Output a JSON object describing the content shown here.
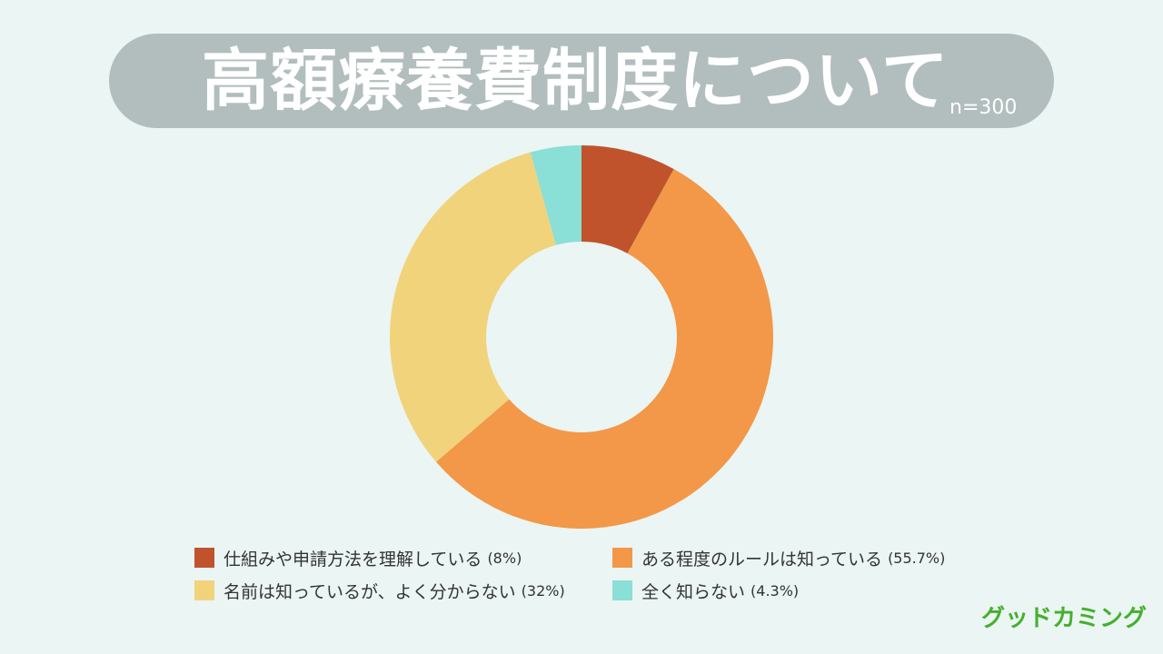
{
  "header": {
    "title": "高額療養費制度について",
    "sample_size": "n=300"
  },
  "chart_data": {
    "type": "pie",
    "variant": "donut",
    "title": "高額療養費制度について",
    "categories": [
      "仕組みや申請方法を理解している",
      "ある程度のルールは知っている",
      "名前は知っているが、よく分からない",
      "全く知らない"
    ],
    "values": [
      8,
      55.7,
      32,
      4.3
    ],
    "value_labels": [
      "(8%)",
      "(55.7%)",
      "(32%)",
      "(4.3%)"
    ],
    "colors": [
      "#c0532c",
      "#f29848",
      "#f1d37b",
      "#8adfd6"
    ],
    "legend_position": "bottom"
  },
  "brand": {
    "logo_text": "グッドカミング",
    "color": "#45b02c"
  }
}
